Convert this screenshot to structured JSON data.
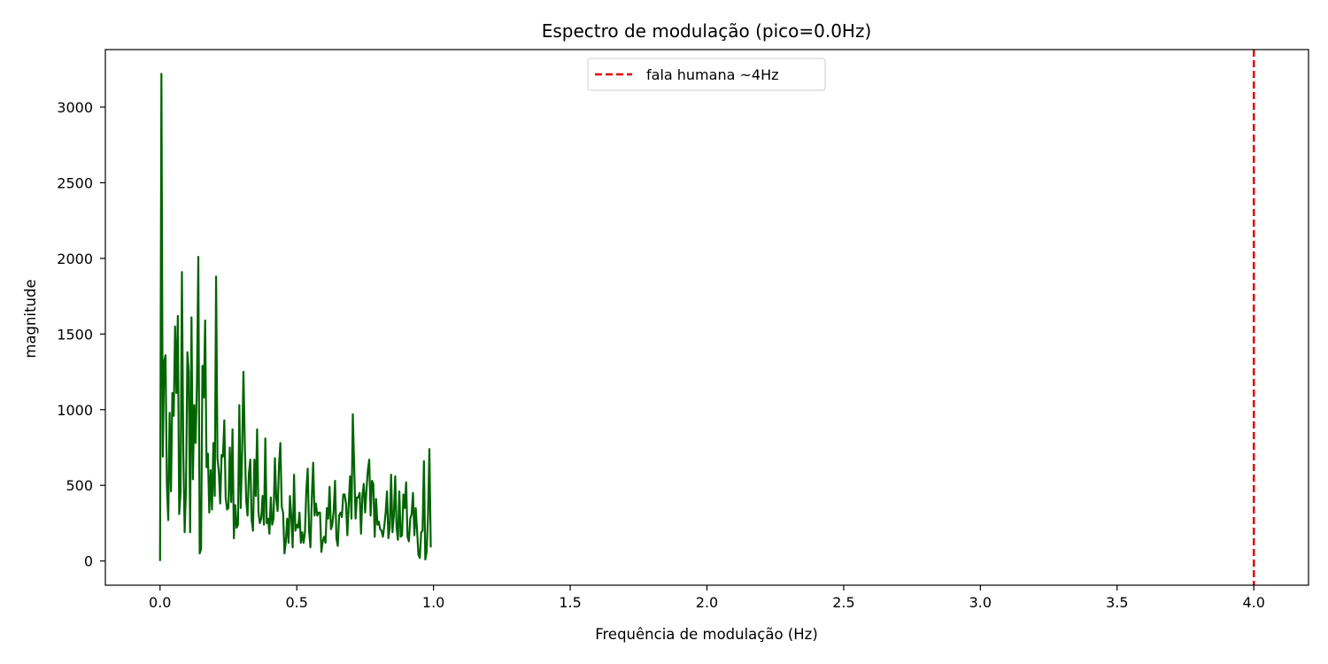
{
  "chart_data": {
    "type": "line",
    "title": "Espectro de modulação (pico=0.0Hz)",
    "xlabel": "Frequência de modulação (Hz)",
    "ylabel": "magnitude",
    "xlim": [
      -0.2,
      4.2
    ],
    "ylim": [
      -160,
      3380
    ],
    "xticks": [
      0.0,
      0.5,
      1.0,
      1.5,
      2.0,
      2.5,
      3.0,
      3.5,
      4.0
    ],
    "xtick_labels": [
      "0.0",
      "0.5",
      "1.0",
      "1.5",
      "2.0",
      "2.5",
      "3.0",
      "3.5",
      "4.0"
    ],
    "yticks": [
      0,
      500,
      1000,
      1500,
      2000,
      2500,
      3000
    ],
    "ytick_labels": [
      "0",
      "500",
      "1000",
      "1500",
      "2000",
      "2500",
      "3000"
    ],
    "grid": false,
    "legend_position": "top-center",
    "series": [
      {
        "color": "#006400",
        "x_start": 0.0,
        "x_step": 0.005,
        "values": [
          0,
          3220,
          690,
          1320,
          1360,
          500,
          270,
          980,
          460,
          1110,
          960,
          1550,
          1110,
          1620,
          310,
          450,
          1910,
          720,
          190,
          480,
          1380,
          1250,
          190,
          1610,
          540,
          1030,
          780,
          1180,
          2010,
          50,
          80,
          1290,
          1080,
          1590,
          620,
          710,
          320,
          600,
          340,
          780,
          430,
          1880,
          680,
          590,
          380,
          700,
          690,
          930,
          420,
          340,
          350,
          750,
          390,
          870,
          150,
          370,
          220,
          240,
          1030,
          350,
          710,
          1250,
          780,
          400,
          300,
          580,
          670,
          270,
          200,
          670,
          430,
          870,
          320,
          250,
          280,
          430,
          240,
          810,
          250,
          280,
          180,
          420,
          240,
          280,
          680,
          410,
          330,
          630,
          780,
          360,
          320,
          50,
          130,
          280,
          120,
          430,
          290,
          90,
          570,
          200,
          240,
          220,
          320,
          120,
          190,
          120,
          190,
          470,
          610,
          200,
          90,
          420,
          650,
          300,
          380,
          300,
          320,
          320,
          60,
          130,
          160,
          120,
          350,
          280,
          490,
          210,
          240,
          330,
          530,
          150,
          100,
          300,
          320,
          290,
          440,
          440,
          380,
          170,
          380,
          560,
          280,
          970,
          620,
          280,
          420,
          420,
          450,
          180,
          430,
          510,
          320,
          470,
          600,
          670,
          300,
          530,
          510,
          160,
          410,
          240,
          260,
          210,
          200,
          160,
          230,
          320,
          460,
          150,
          220,
          570,
          190,
          300,
          560,
          220,
          140,
          460,
          160,
          170,
          440,
          350,
          520,
          160,
          130,
          280,
          310,
          450,
          170,
          350,
          200,
          40,
          20,
          190,
          200,
          660,
          10,
          60,
          300,
          740,
          90
        ]
      },
      {
        "name": "fala humana ~4Hz",
        "type": "vline",
        "x": 4.0,
        "color": "#e00000",
        "style": "dashed"
      }
    ]
  }
}
